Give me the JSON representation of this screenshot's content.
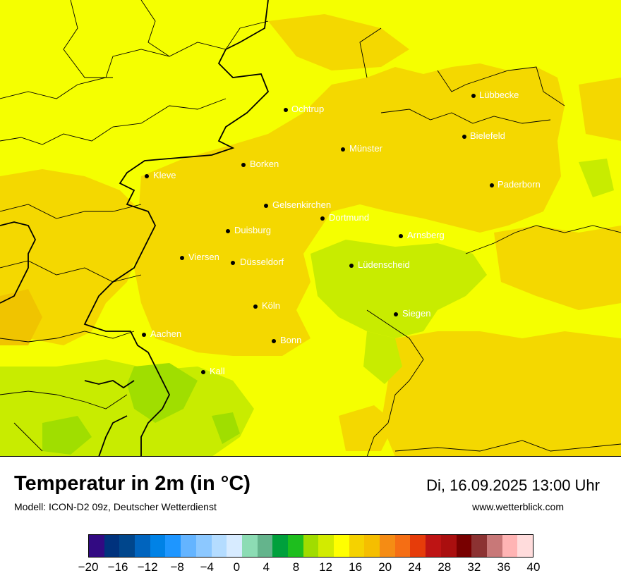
{
  "title": "Temperatur in 2m (in °C)",
  "subtitle": "Modell: ICON-D2 09z, Deutscher Wetterdienst",
  "datetime": "Di, 16.09.2025 13:00 Uhr",
  "website": "www.wetterblick.com",
  "cities": [
    "Lübbecke",
    "Ochtrup",
    "Bielefeld",
    "Münster",
    "Borken",
    "Kleve",
    "Paderborn",
    "Gelsenkirchen",
    "Dortmund",
    "Duisburg",
    "Arnsberg",
    "Viersen",
    "Düsseldorf",
    "Lüdenscheid",
    "Köln",
    "Siegen",
    "Aachen",
    "Bonn",
    "Kall"
  ],
  "legend": {
    "unit": "°C",
    "ticks": [
      "−20",
      "−16",
      "−12",
      "−8",
      "−4",
      "0",
      "4",
      "8",
      "12",
      "16",
      "20",
      "24",
      "28",
      "32",
      "36",
      "40"
    ],
    "colors": [
      "#320a82",
      "#00327d",
      "#00468c",
      "#0064be",
      "#0082e6",
      "#1e96ff",
      "#64b4ff",
      "#8cc8ff",
      "#b4dcff",
      "#d7ebff",
      "#8cdcb4",
      "#64b48c",
      "#00a03c",
      "#1ebe1e",
      "#a0dc00",
      "#d2eb00",
      "#ffff00",
      "#f5d200",
      "#f5be00",
      "#f58c14",
      "#f56e14",
      "#e63c0a",
      "#be1414",
      "#aa0f0f",
      "#780000",
      "#8c3232",
      "#c87878",
      "#ffb4b4",
      "#ffdcdc"
    ]
  },
  "colors": {
    "warm_area": "#f4d800",
    "base": "#f5ff00",
    "cool_area": "#c8ec00",
    "cooler_area": "#a0de00"
  }
}
